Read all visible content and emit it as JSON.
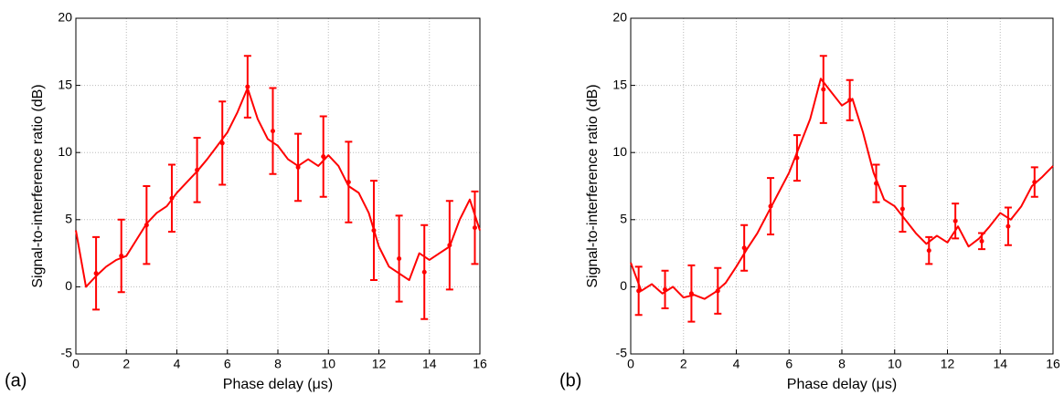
{
  "chart_data": [
    {
      "type": "line",
      "panel_label": "(a)",
      "xlabel": "Phase delay (μs)",
      "ylabel": "Signal-to-interference ratio (dB)",
      "xlim": [
        0,
        16
      ],
      "ylim": [
        -5,
        20
      ],
      "xticks": [
        0,
        2,
        4,
        6,
        8,
        10,
        12,
        14,
        16
      ],
      "yticks": [
        -5,
        0,
        5,
        10,
        15,
        20
      ],
      "grid": true,
      "x": [
        0,
        0.4,
        0.8,
        1.2,
        1.6,
        2.0,
        2.4,
        2.8,
        3.2,
        3.6,
        4.0,
        4.4,
        4.8,
        5.2,
        5.6,
        6.0,
        6.4,
        6.8,
        7.2,
        7.6,
        8.0,
        8.4,
        8.8,
        9.2,
        9.6,
        10.0,
        10.4,
        10.8,
        11.2,
        11.6,
        12.0,
        12.4,
        12.8,
        13.2,
        13.6,
        14.0,
        14.4,
        14.8,
        15.2,
        15.6,
        16.0
      ],
      "series": [
        {
          "color": "#ff0000",
          "values": [
            4.2,
            0,
            0.8,
            1.5,
            2.0,
            2.3,
            3.5,
            4.7,
            5.5,
            6.0,
            7.0,
            7.8,
            8.6,
            9.5,
            10.5,
            11.5,
            13.0,
            14.8,
            12.5,
            11.0,
            10.5,
            9.5,
            9.0,
            9.5,
            9.0,
            9.8,
            9.0,
            7.5,
            7.0,
            5.5,
            3.0,
            1.5,
            1.0,
            0.5,
            2.5,
            2.0,
            2.5,
            3.0,
            5.0,
            6.5,
            4.2
          ]
        }
      ],
      "error_bars": {
        "color": "#ff0000",
        "x": [
          0.8,
          1.8,
          2.8,
          3.8,
          4.8,
          5.8,
          6.8,
          7.8,
          8.8,
          9.8,
          10.8,
          11.8,
          12.8,
          13.8,
          14.8,
          15.8
        ],
        "values": [
          1.0,
          2.3,
          4.6,
          6.6,
          8.7,
          10.7,
          14.9,
          11.6,
          8.9,
          9.7,
          7.8,
          4.2,
          2.1,
          1.1,
          3.1,
          4.4
        ],
        "errors": [
          2.7,
          2.7,
          2.9,
          2.5,
          2.4,
          3.1,
          2.3,
          3.2,
          2.5,
          3.0,
          3.0,
          3.7,
          3.2,
          3.5,
          3.3,
          2.7
        ]
      }
    },
    {
      "type": "line",
      "panel_label": "(b)",
      "xlabel": "Phase delay (μs)",
      "ylabel": "Signal-to-interference ratio (dB)",
      "xlim": [
        0,
        16
      ],
      "ylim": [
        -5,
        20
      ],
      "xticks": [
        0,
        2,
        4,
        6,
        8,
        10,
        12,
        14,
        16
      ],
      "yticks": [
        -5,
        0,
        5,
        10,
        15,
        20
      ],
      "grid": true,
      "x": [
        0,
        0.4,
        0.8,
        1.2,
        1.6,
        2.0,
        2.4,
        2.8,
        3.2,
        3.6,
        4.0,
        4.4,
        4.8,
        5.2,
        5.6,
        6.0,
        6.4,
        6.8,
        7.2,
        7.6,
        8.0,
        8.4,
        8.8,
        9.2,
        9.6,
        10.0,
        10.4,
        10.8,
        11.2,
        11.6,
        12.0,
        12.4,
        12.8,
        13.2,
        13.6,
        14.0,
        14.4,
        14.8,
        15.2,
        15.6,
        16.0
      ],
      "series": [
        {
          "color": "#ff0000",
          "values": [
            1.8,
            -0.3,
            0.2,
            -0.5,
            0,
            -0.8,
            -0.6,
            -0.9,
            -0.4,
            0.3,
            1.5,
            2.8,
            4.0,
            5.5,
            7.0,
            8.5,
            10.5,
            12.5,
            15.5,
            14.5,
            13.5,
            14.0,
            11.5,
            8.5,
            6.5,
            6.0,
            5.0,
            4.0,
            3.2,
            3.8,
            3.3,
            4.5,
            3.0,
            3.6,
            4.5,
            5.5,
            5.0,
            6.0,
            7.5,
            8.2,
            9.0
          ]
        }
      ],
      "error_bars": {
        "color": "#ff0000",
        "x": [
          0.3,
          1.3,
          2.3,
          3.3,
          4.3,
          5.3,
          6.3,
          7.3,
          8.3,
          9.3,
          10.3,
          11.3,
          12.3,
          13.3,
          14.3,
          15.3
        ],
        "values": [
          -0.3,
          -0.2,
          -0.5,
          -0.3,
          2.9,
          6.0,
          9.6,
          14.7,
          13.9,
          7.7,
          5.8,
          2.7,
          4.9,
          3.4,
          4.5,
          7.8
        ],
        "errors": [
          1.8,
          1.4,
          2.1,
          1.7,
          1.7,
          2.1,
          1.7,
          2.5,
          1.5,
          1.4,
          1.7,
          1.0,
          1.3,
          0.6,
          1.4,
          1.1
        ]
      }
    }
  ]
}
